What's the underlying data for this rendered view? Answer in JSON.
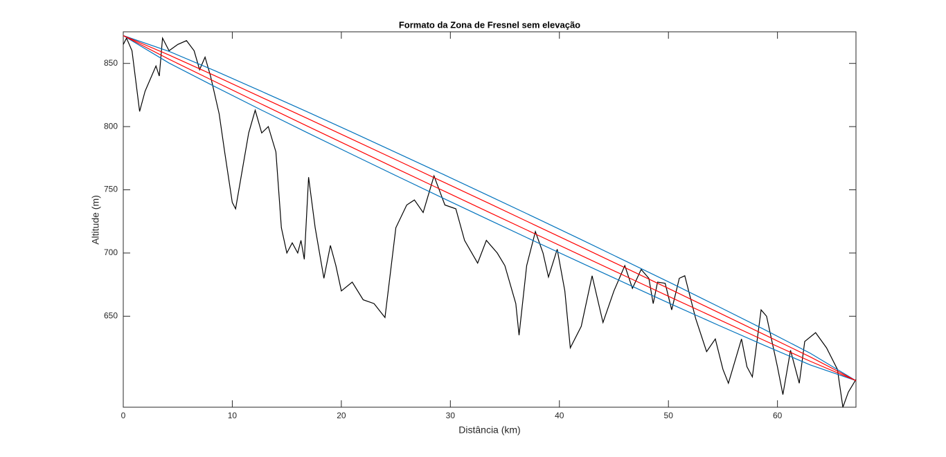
{
  "chart_data": {
    "type": "line",
    "title": "Formato da Zona de Fresnel sem elevação",
    "xlabel": "Distância (km)",
    "ylabel": "Altitude (m)",
    "xlim": [
      0,
      67.2
    ],
    "ylim": [
      578,
      875
    ],
    "xticks": [
      0,
      10,
      20,
      30,
      40,
      50,
      60
    ],
    "yticks": [
      650,
      700,
      750,
      800,
      850
    ],
    "series": [
      {
        "color": "#000000",
        "x": [
          0,
          0.3,
          0.8,
          1.5,
          2,
          3,
          3.3,
          3.6,
          4.2,
          5,
          5.8,
          6.5,
          7,
          7.5,
          8,
          8.8,
          9.3,
          10,
          10.3,
          11,
          11.5,
          12.1,
          12.7,
          13.3,
          14,
          14.5,
          15,
          15.5,
          16,
          16.3,
          16.6,
          17,
          17.6,
          18.4,
          19,
          19.5,
          20,
          21,
          22,
          23,
          24,
          25,
          26,
          26.7,
          27.5,
          28.5,
          29.5,
          30.5,
          31.3,
          32.5,
          33.3,
          34.3,
          35,
          36,
          36.3,
          37,
          37.8,
          38.5,
          39,
          39.8,
          40.5,
          41,
          42,
          43,
          44,
          45,
          46,
          46.7,
          47.5,
          48.2,
          48.6,
          49,
          49.7,
          50.3,
          51,
          51.5,
          52.5,
          53.5,
          54.3,
          55,
          55.5,
          56.7,
          57.2,
          57.7,
          58.5,
          59,
          60,
          60.5,
          61.2,
          62,
          62.5,
          63.5,
          64.5,
          65.5,
          66,
          66.5,
          67.2
        ],
        "values": [
          865,
          870,
          860,
          812,
          828,
          848,
          840,
          870,
          860,
          865,
          868,
          860,
          845,
          855,
          840,
          810,
          780,
          740,
          735,
          770,
          795,
          813,
          795,
          800,
          780,
          720,
          700,
          708,
          700,
          710,
          695,
          760,
          720,
          680,
          706,
          690,
          670,
          677,
          663,
          660,
          649,
          720,
          738,
          742,
          732,
          761,
          738,
          735,
          710,
          692,
          710,
          700,
          690,
          660,
          635,
          690,
          717,
          700,
          681,
          703,
          670,
          625,
          642,
          682,
          645,
          670,
          690,
          672,
          687,
          680,
          660,
          677,
          676,
          655,
          680,
          682,
          648,
          622,
          632,
          608,
          597,
          632,
          610,
          602,
          655,
          650,
          610,
          588,
          623,
          597,
          630,
          637,
          625,
          608,
          578,
          590,
          600
        ]
      },
      {
        "color": "#0072bd",
        "x": [
          0,
          4.2,
          8.4,
          12.6,
          16.8,
          21,
          25.2,
          29.4,
          33.6,
          37.8,
          42,
          46.2,
          50.4,
          54.6,
          58.8,
          63,
          67.2
        ],
        "values": [
          872,
          859.5,
          844.2,
          828.2,
          812.0,
          795.5,
          778.8,
          762.0,
          745.0,
          727.9,
          710.6,
          693.1,
          675.5,
          657.6,
          639.4,
          620.7,
          599
        ]
      },
      {
        "color": "#0072bd",
        "x": [
          0,
          4.2,
          8.4,
          12.6,
          16.8,
          21,
          25.2,
          29.4,
          33.6,
          37.8,
          42,
          46.2,
          50.4,
          54.6,
          58.8,
          63,
          67.2
        ],
        "values": [
          872,
          850.3,
          831.6,
          813.4,
          795.5,
          777.9,
          760.4,
          743.1,
          726.0,
          709.0,
          692.2,
          675.5,
          659.0,
          642.8,
          626.9,
          611.5,
          599
        ]
      },
      {
        "color": "#ff0000",
        "x": [
          0,
          4.2,
          8.4,
          12.6,
          16.8,
          21,
          25.2,
          29.4,
          33.6,
          37.8,
          42,
          46.2,
          50.4,
          54.6,
          58.8,
          63,
          67.2
        ],
        "values": [
          872,
          856.6,
          840.2,
          823.5,
          806.8,
          789.9,
          773.0,
          756.0,
          739.0,
          721.9,
          704.8,
          687.6,
          670.3,
          652.9,
          635.4,
          617.8,
          599
        ]
      },
      {
        "color": "#ff0000",
        "x": [
          0,
          4.2,
          8.4,
          12.6,
          16.8,
          21,
          25.2,
          29.4,
          33.6,
          37.8,
          42,
          46.2,
          50.4,
          54.6,
          58.8,
          63,
          67.2
        ],
        "values": [
          872,
          853.3,
          835.6,
          818.1,
          800.7,
          783.5,
          766.2,
          749.1,
          732.0,
          715.0,
          698.0,
          681.1,
          664.2,
          647.5,
          630.8,
          614.4,
          599
        ]
      }
    ]
  }
}
